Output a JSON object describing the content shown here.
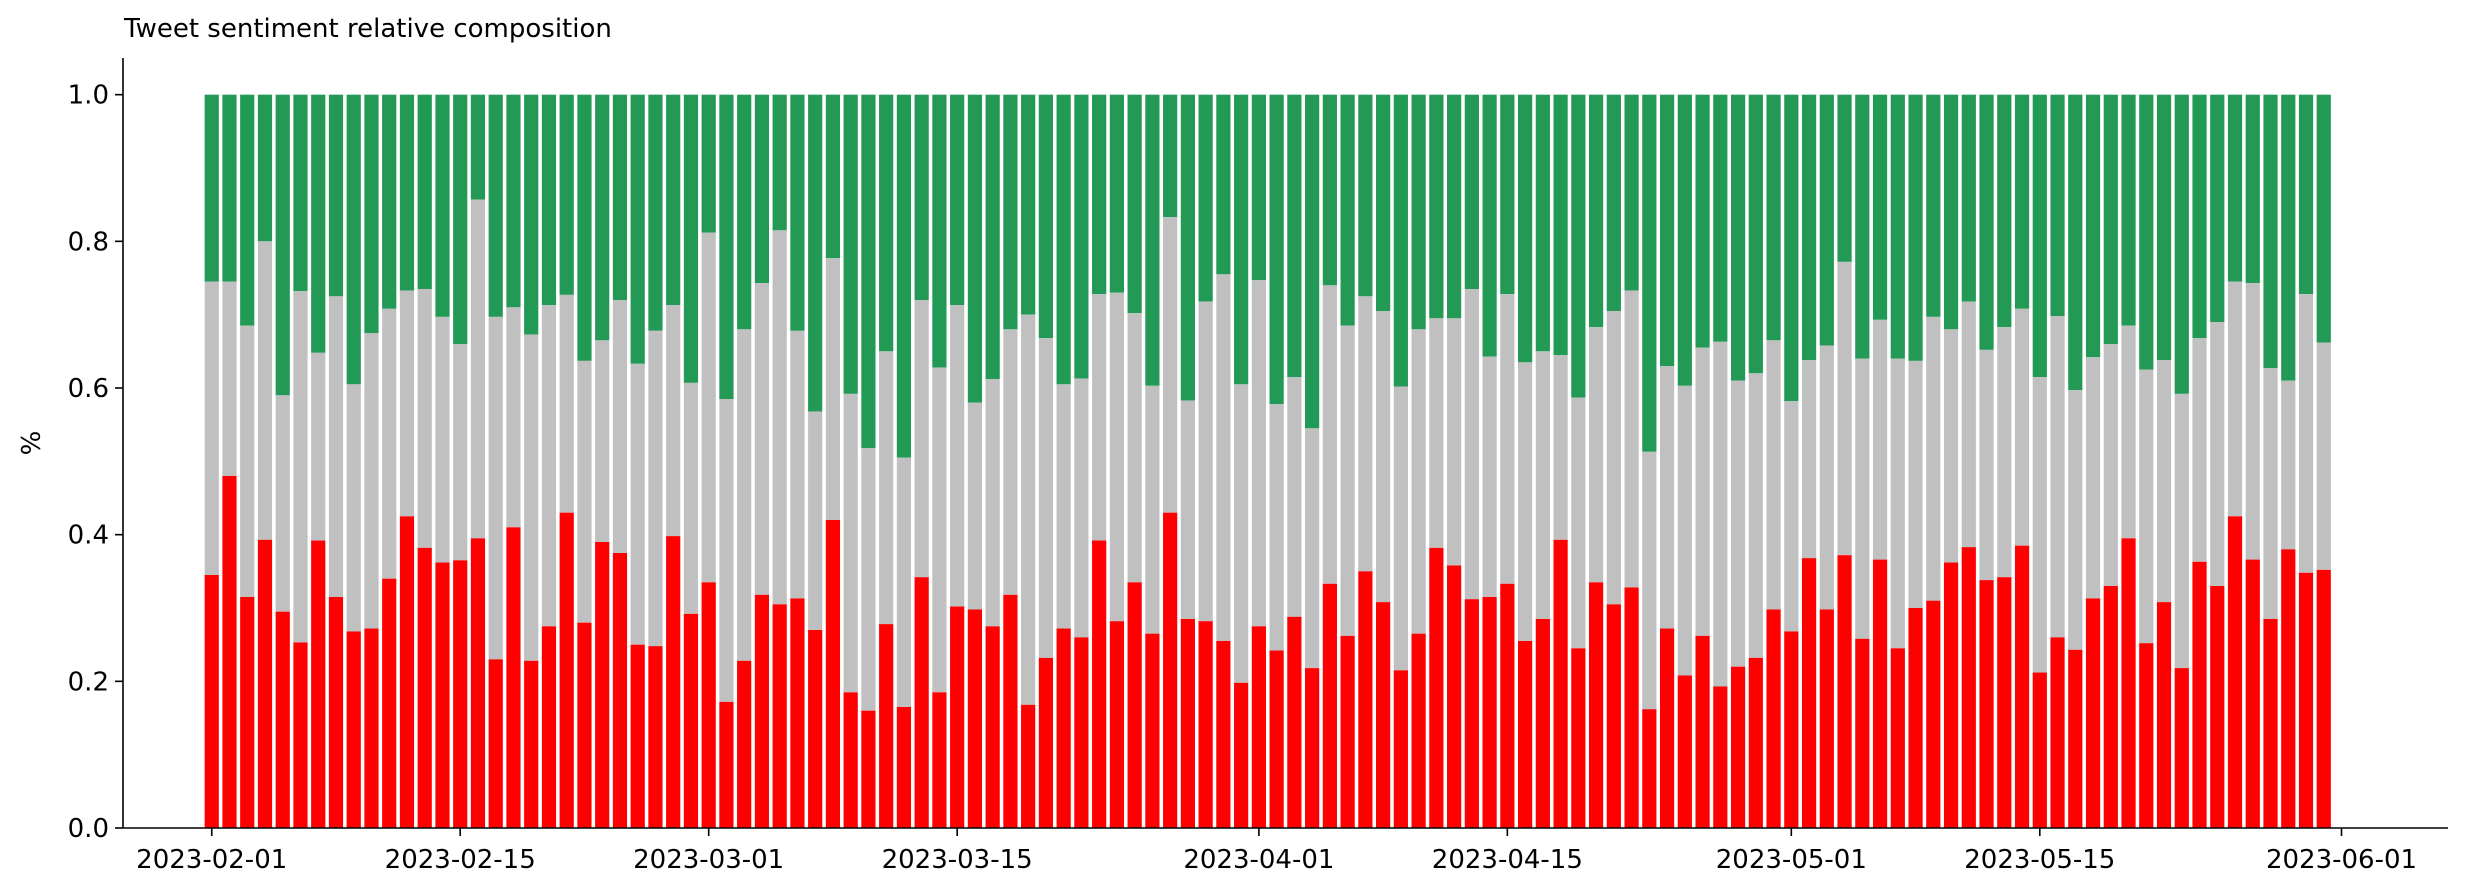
{
  "chart_data": {
    "type": "bar",
    "stacked": true,
    "title": "Tweet sentiment relative composition",
    "xlabel": "",
    "ylabel": "%",
    "ylim": [
      0,
      1.05
    ],
    "y_ticks": [
      0.0,
      0.2,
      0.4,
      0.6,
      0.8,
      1.0
    ],
    "y_tick_labels": [
      "0.0",
      "0.2",
      "0.4",
      "0.6",
      "0.8",
      "1.0"
    ],
    "x_ticks": [
      "2023-02-01",
      "2023-02-15",
      "2023-03-01",
      "2023-03-15",
      "2023-04-01",
      "2023-04-15",
      "2023-05-01",
      "2023-05-15",
      "2023-06-01"
    ],
    "x_range": [
      "2023-01-27",
      "2023-06-07"
    ],
    "x_start": "2023-02-01",
    "grid": false,
    "colors": {
      "negative": "#ff0000",
      "neutral": "#c0c0c0",
      "positive": "#229954"
    },
    "negative": [
      0.345,
      0.48,
      0.315,
      0.393,
      0.295,
      0.253,
      0.392,
      0.315,
      0.268,
      0.272,
      0.34,
      0.425,
      0.382,
      0.362,
      0.365,
      0.395,
      0.23,
      0.41,
      0.228,
      0.275,
      0.43,
      0.28,
      0.39,
      0.375,
      0.25,
      0.248,
      0.398,
      0.292,
      0.335,
      0.172,
      0.228,
      0.318,
      0.305,
      0.313,
      0.27,
      0.42,
      0.185,
      0.16,
      0.278,
      0.165,
      0.342,
      0.185,
      0.302,
      0.298,
      0.275,
      0.318,
      0.168,
      0.232,
      0.272,
      0.26,
      0.392,
      0.282,
      0.335,
      0.265,
      0.43,
      0.285,
      0.282,
      0.255,
      0.198,
      0.275,
      0.242,
      0.288,
      0.218,
      0.333,
      0.262,
      0.35,
      0.308,
      0.215,
      0.265,
      0.382,
      0.358,
      0.312,
      0.315,
      0.333,
      0.255,
      0.285,
      0.393,
      0.245,
      0.335,
      0.305,
      0.328,
      0.162,
      0.272,
      0.208,
      0.262,
      0.193,
      0.22,
      0.232,
      0.298,
      0.268,
      0.368,
      0.298,
      0.372,
      0.258,
      0.366,
      0.245,
      0.3,
      0.31,
      0.362,
      0.383,
      0.338,
      0.342,
      0.385,
      0.212,
      0.26,
      0.243,
      0.313,
      0.33,
      0.395,
      0.252,
      0.308,
      0.218,
      0.363,
      0.33,
      0.425,
      0.366,
      0.285,
      0.38,
      0.348,
      0.352
    ],
    "neutral_top": [
      0.745,
      0.745,
      0.685,
      0.8,
      0.59,
      0.732,
      0.648,
      0.725,
      0.605,
      0.675,
      0.708,
      0.733,
      0.735,
      0.697,
      0.66,
      0.857,
      0.697,
      0.71,
      0.673,
      0.713,
      0.727,
      0.637,
      0.665,
      0.72,
      0.633,
      0.678,
      0.713,
      0.607,
      0.812,
      0.585,
      0.68,
      0.743,
      0.815,
      0.678,
      0.568,
      0.777,
      0.592,
      0.518,
      0.65,
      0.505,
      0.72,
      0.628,
      0.713,
      0.58,
      0.612,
      0.68,
      0.7,
      0.668,
      0.605,
      0.613,
      0.728,
      0.73,
      0.702,
      0.603,
      0.833,
      0.583,
      0.718,
      0.755,
      0.605,
      0.747,
      0.578,
      0.615,
      0.545,
      0.74,
      0.685,
      0.725,
      0.705,
      0.602,
      0.68,
      0.695,
      0.695,
      0.735,
      0.643,
      0.728,
      0.635,
      0.65,
      0.645,
      0.587,
      0.683,
      0.705,
      0.733,
      0.513,
      0.63,
      0.603,
      0.655,
      0.663,
      0.61,
      0.62,
      0.665,
      0.582,
      0.638,
      0.658,
      0.772,
      0.64,
      0.693,
      0.64,
      0.637,
      0.697,
      0.68,
      0.718,
      0.652,
      0.683,
      0.708,
      0.615,
      0.698,
      0.597,
      0.642,
      0.66,
      0.685,
      0.625,
      0.638,
      0.592,
      0.668,
      0.69,
      0.745,
      0.743,
      0.627,
      0.61,
      0.728,
      0.662
    ],
    "total": 1.0
  }
}
